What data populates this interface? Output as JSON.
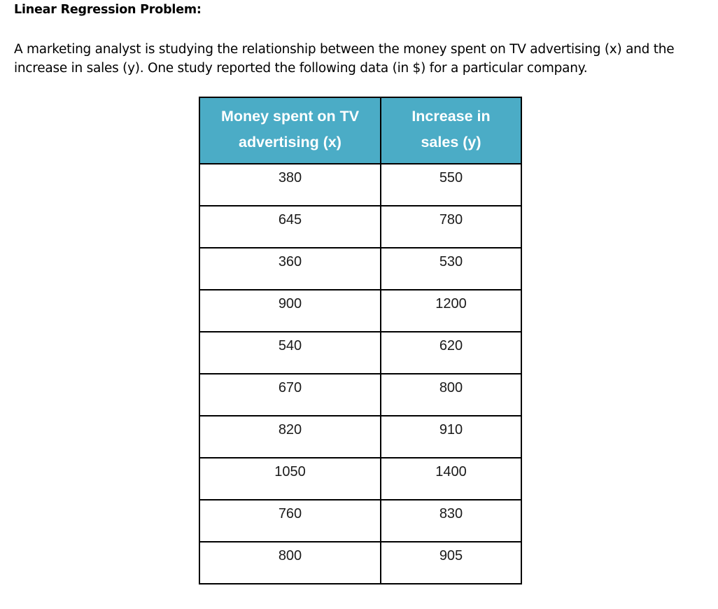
{
  "title": "Linear Regression Problem:",
  "paragraph": {
    "line1": "A marketing analyst is studying the relationship between the money spent on TV advertising (x) and the",
    "line2": "increase in sales (y). One study reported the following data (in $) for a particular company."
  },
  "table": {
    "header_color": "#4bacc6",
    "headers": [
      {
        "line1": "Money spent on TV",
        "line2": "advertising (x)"
      },
      {
        "line1": "Increase in",
        "line2": "sales (y)"
      }
    ],
    "rows": [
      {
        "x": "380",
        "y": "550"
      },
      {
        "x": "645",
        "y": "780"
      },
      {
        "x": "360",
        "y": "530"
      },
      {
        "x": "900",
        "y": "1200"
      },
      {
        "x": "540",
        "y": "620"
      },
      {
        "x": "670",
        "y": "800"
      },
      {
        "x": "820",
        "y": "910"
      },
      {
        "x": "1050",
        "y": "1400"
      },
      {
        "x": "760",
        "y": "830"
      },
      {
        "x": "800",
        "y": "905"
      }
    ]
  }
}
